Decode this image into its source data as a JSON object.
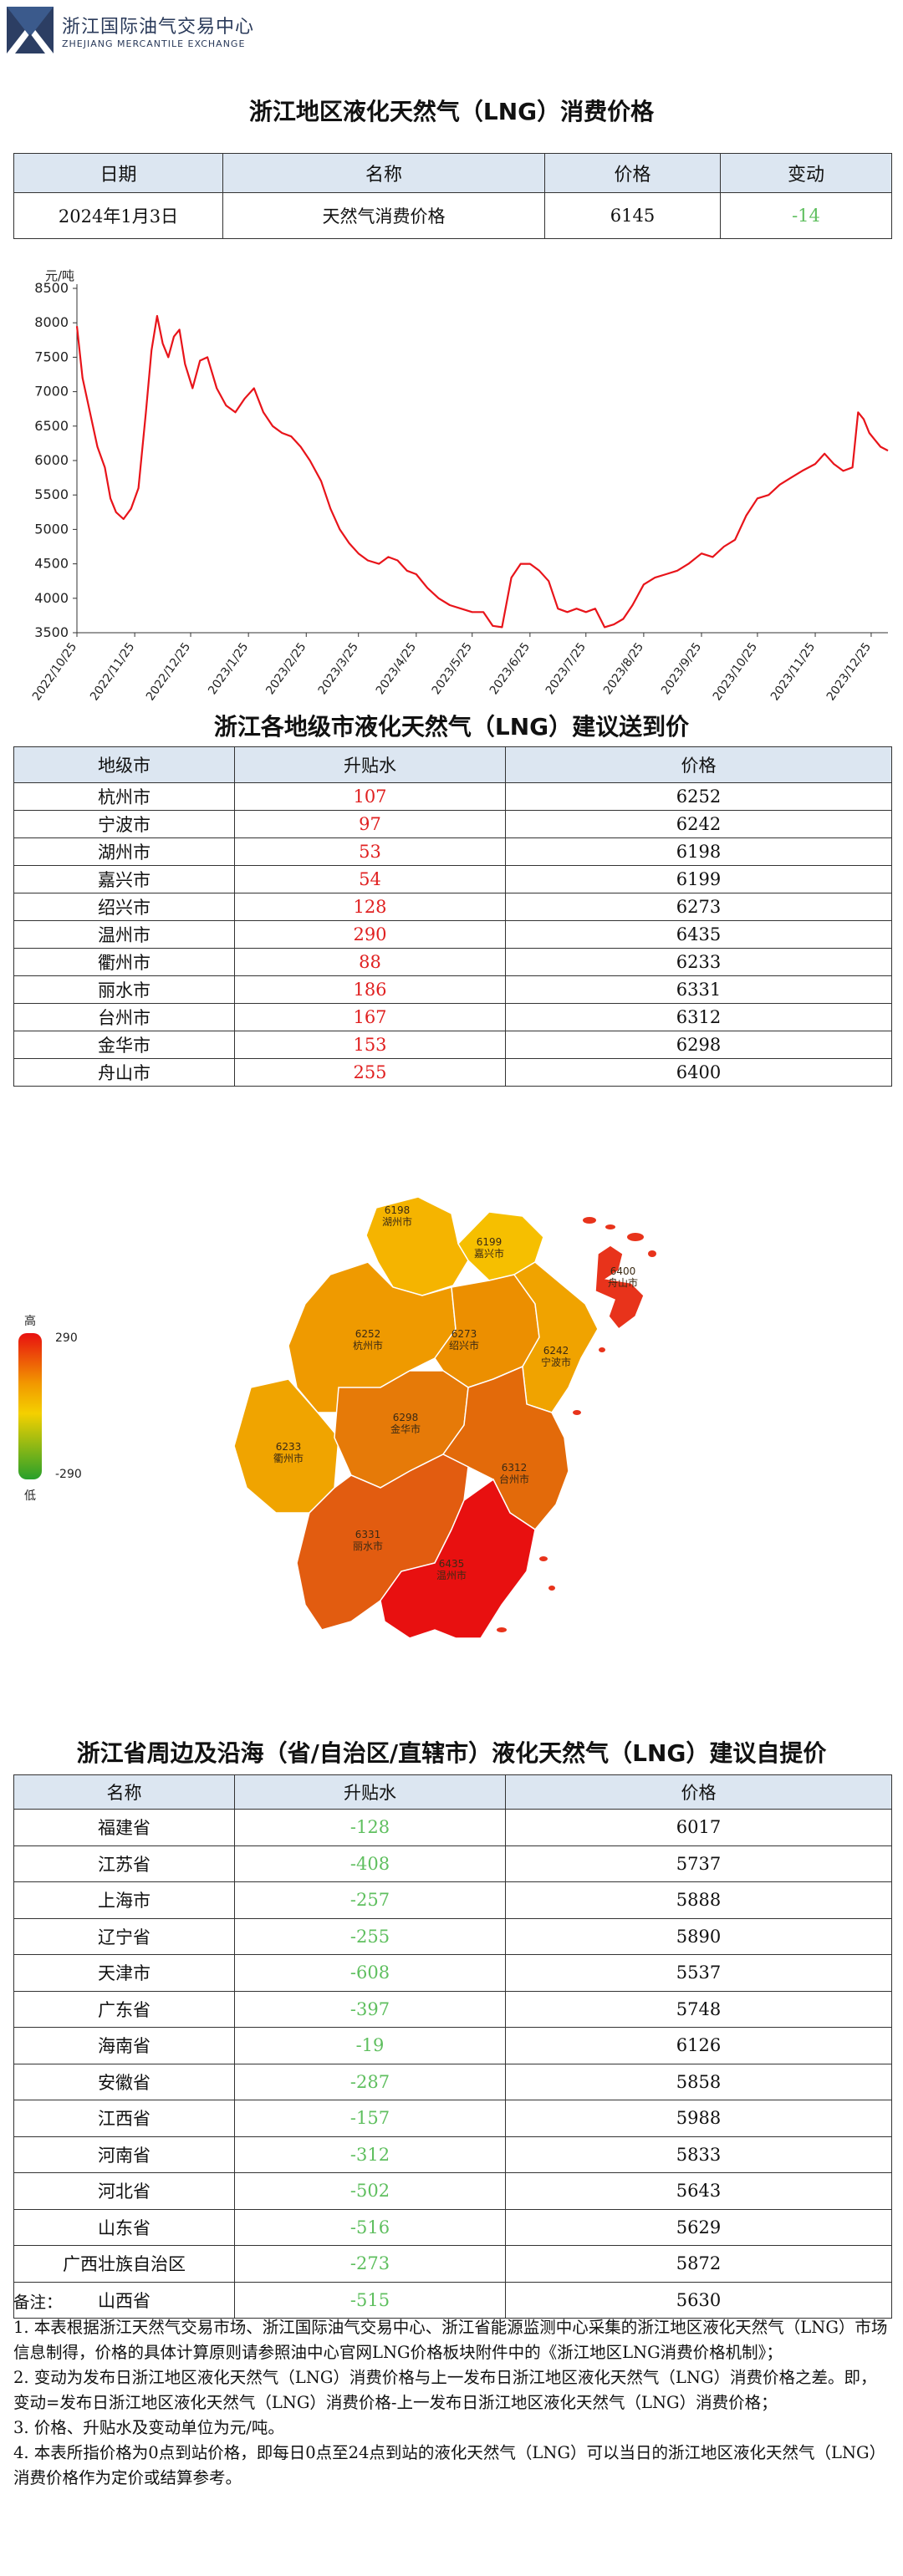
{
  "header": {
    "org_cn": "浙江国际油气交易中心",
    "org_en": "ZHEJIANG MERCANTILE EXCHANGE"
  },
  "summary": {
    "title": "浙江地区液化天然气（LNG）消费价格",
    "headers": [
      "日期",
      "名称",
      "价格",
      "变动"
    ],
    "row": {
      "date": "2024年1月3日",
      "name": "天然气消费价格",
      "price": "6145",
      "change": "-14"
    }
  },
  "chart_data": {
    "type": "line",
    "ylabel": "元/吨",
    "ylim": [
      3500,
      8500
    ],
    "yticks": [
      3500,
      4000,
      4500,
      5000,
      5500,
      6000,
      6500,
      7000,
      7500,
      8000,
      8500
    ],
    "xtick_labels": [
      "2022/10/25",
      "2022/11/25",
      "2022/12/25",
      "2023/1/25",
      "2023/2/25",
      "2023/3/25",
      "2023/4/25",
      "2023/5/25",
      "2023/6/25",
      "2023/7/25",
      "2023/8/25",
      "2023/9/25",
      "2023/10/25",
      "2023/11/25",
      "2023/12/25"
    ],
    "line_color": "#e8141a",
    "series": [
      {
        "x": [
          "2022-10-25",
          "2022-10-28",
          "2022-11-01",
          "2022-11-05",
          "2022-11-09",
          "2022-11-12",
          "2022-11-15",
          "2022-11-19",
          "2022-11-23",
          "2022-11-27",
          "2022-12-01",
          "2022-12-04",
          "2022-12-07",
          "2022-12-10",
          "2022-12-13",
          "2022-12-16",
          "2022-12-19",
          "2022-12-22",
          "2022-12-26",
          "2022-12-30",
          "2023-01-03",
          "2023-01-08",
          "2023-01-13",
          "2023-01-18",
          "2023-01-23",
          "2023-01-28",
          "2023-02-02",
          "2023-02-07",
          "2023-02-12",
          "2023-02-17",
          "2023-02-22",
          "2023-02-27",
          "2023-03-05",
          "2023-03-10",
          "2023-03-15",
          "2023-03-20",
          "2023-03-25",
          "2023-03-30",
          "2023-04-05",
          "2023-04-10",
          "2023-04-15",
          "2023-04-20",
          "2023-04-25",
          "2023-05-01",
          "2023-05-07",
          "2023-05-13",
          "2023-05-19",
          "2023-05-25",
          "2023-05-31",
          "2023-06-05",
          "2023-06-10",
          "2023-06-15",
          "2023-06-20",
          "2023-06-25",
          "2023-06-30",
          "2023-07-05",
          "2023-07-10",
          "2023-07-15",
          "2023-07-20",
          "2023-07-25",
          "2023-07-30",
          "2023-08-04",
          "2023-08-09",
          "2023-08-14",
          "2023-08-19",
          "2023-08-25",
          "2023-08-31",
          "2023-09-06",
          "2023-09-12",
          "2023-09-18",
          "2023-09-25",
          "2023-10-01",
          "2023-10-07",
          "2023-10-13",
          "2023-10-19",
          "2023-10-25",
          "2023-10-31",
          "2023-11-06",
          "2023-11-12",
          "2023-11-18",
          "2023-11-25",
          "2023-11-30",
          "2023-12-05",
          "2023-12-10",
          "2023-12-15",
          "2023-12-18",
          "2023-12-21",
          "2023-12-24",
          "2023-12-27",
          "2023-12-30",
          "2024-01-03"
        ],
        "values": [
          7950,
          7200,
          6700,
          6200,
          5900,
          5450,
          5250,
          5150,
          5300,
          5600,
          6700,
          7600,
          8100,
          7700,
          7500,
          7800,
          7900,
          7400,
          7050,
          7450,
          7500,
          7050,
          6800,
          6700,
          6900,
          7050,
          6700,
          6500,
          6400,
          6350,
          6200,
          6000,
          5700,
          5300,
          5000,
          4800,
          4650,
          4550,
          4500,
          4600,
          4550,
          4400,
          4350,
          4150,
          4000,
          3900,
          3850,
          3800,
          3800,
          3600,
          3580,
          4300,
          4500,
          4500,
          4400,
          4250,
          3850,
          3800,
          3850,
          3800,
          3850,
          3580,
          3620,
          3700,
          3900,
          4200,
          4300,
          4350,
          4400,
          4500,
          4650,
          4600,
          4750,
          4850,
          5200,
          5450,
          5500,
          5650,
          5750,
          5850,
          5950,
          6100,
          5950,
          5850,
          5900,
          6700,
          6600,
          6400,
          6300,
          6200,
          6145
        ]
      }
    ]
  },
  "city": {
    "title": "浙江各地级市液化天然气（LNG）建议送到价",
    "headers": [
      "地级市",
      "升贴水",
      "价格"
    ],
    "rows": [
      {
        "name": "杭州市",
        "diff": "107",
        "price": "6252"
      },
      {
        "name": "宁波市",
        "diff": "97",
        "price": "6242"
      },
      {
        "name": "湖州市",
        "diff": "53",
        "price": "6198"
      },
      {
        "name": "嘉兴市",
        "diff": "54",
        "price": "6199"
      },
      {
        "name": "绍兴市",
        "diff": "128",
        "price": "6273"
      },
      {
        "name": "温州市",
        "diff": "290",
        "price": "6435"
      },
      {
        "name": "衢州市",
        "diff": "88",
        "price": "6233"
      },
      {
        "name": "丽水市",
        "diff": "186",
        "price": "6331"
      },
      {
        "name": "台州市",
        "diff": "167",
        "price": "6312"
      },
      {
        "name": "金华市",
        "diff": "153",
        "price": "6298"
      },
      {
        "name": "舟山市",
        "diff": "255",
        "price": "6400"
      }
    ]
  },
  "map": {
    "legend_high": "高",
    "legend_low": "低",
    "legend_max": "290",
    "legend_min": "-290",
    "regions": [
      {
        "key": "huzhou",
        "price": "6198",
        "name": "湖州市",
        "color": "#f5b400"
      },
      {
        "key": "jiaxing",
        "price": "6199",
        "name": "嘉兴市",
        "color": "#f6bf00"
      },
      {
        "key": "hangzhou",
        "price": "6252",
        "name": "杭州市",
        "color": "#ef9a00"
      },
      {
        "key": "shaoxing",
        "price": "6273",
        "name": "绍兴市",
        "color": "#ec8f00"
      },
      {
        "key": "ningbo",
        "price": "6242",
        "name": "宁波市",
        "color": "#f0a300"
      },
      {
        "key": "zhoushan",
        "price": "6400",
        "name": "舟山市",
        "color": "#e8331b"
      },
      {
        "key": "quzhou",
        "price": "6233",
        "name": "衢州市",
        "color": "#f0a400"
      },
      {
        "key": "jinhua",
        "price": "6298",
        "name": "金华市",
        "color": "#e67a08"
      },
      {
        "key": "taizhou",
        "price": "6312",
        "name": "台州市",
        "color": "#e36a0a"
      },
      {
        "key": "lishui",
        "price": "6331",
        "name": "丽水市",
        "color": "#e25c10"
      },
      {
        "key": "wenzhou",
        "price": "6435",
        "name": "温州市",
        "color": "#e81010"
      }
    ]
  },
  "region": {
    "title": "浙江省周边及沿海（省/自治区/直辖市）液化天然气（LNG）建议自提价",
    "headers": [
      "名称",
      "升贴水",
      "价格"
    ],
    "rows": [
      {
        "name": "福建省",
        "diff": "-128",
        "price": "6017"
      },
      {
        "name": "江苏省",
        "diff": "-408",
        "price": "5737"
      },
      {
        "name": "上海市",
        "diff": "-257",
        "price": "5888"
      },
      {
        "name": "辽宁省",
        "diff": "-255",
        "price": "5890"
      },
      {
        "name": "天津市",
        "diff": "-608",
        "price": "5537"
      },
      {
        "name": "广东省",
        "diff": "-397",
        "price": "5748"
      },
      {
        "name": "海南省",
        "diff": "-19",
        "price": "6126"
      },
      {
        "name": "安徽省",
        "diff": "-287",
        "price": "5858"
      },
      {
        "name": "江西省",
        "diff": "-157",
        "price": "5988"
      },
      {
        "name": "河南省",
        "diff": "-312",
        "price": "5833"
      },
      {
        "name": "河北省",
        "diff": "-502",
        "price": "5643"
      },
      {
        "name": "山东省",
        "diff": "-516",
        "price": "5629"
      },
      {
        "name": "广西壮族自治区",
        "diff": "-273",
        "price": "5872"
      },
      {
        "name": "山西省",
        "diff": "-515",
        "price": "5630"
      }
    ]
  },
  "notes": {
    "heading": "备注：",
    "items": [
      "1. 本表根据浙江天然气交易市场、浙江国际油气交易中心、浙江省能源监测中心采集的浙江地区液化天然气（LNG）市场信息制得，价格的具体计算原则请参照油中心官网LNG价格板块附件中的《浙江地区LNG消费价格机制》；",
      "2. 变动为发布日浙江地区液化天然气（LNG）消费价格与上一发布日浙江地区液化天然气（LNG）消费价格之差。即，变动=发布日浙江地区液化天然气（LNG）消费价格-上一发布日浙江地区液化天然气（LNG）消费价格；",
      "3. 价格、升贴水及变动单位为元/吨。",
      "4. 本表所指价格为0点到站价格，即每日0点至24点到站的液化天然气（LNG）可以当日的浙江地区液化天然气（LNG）消费价格作为定价或结算参考。"
    ]
  }
}
